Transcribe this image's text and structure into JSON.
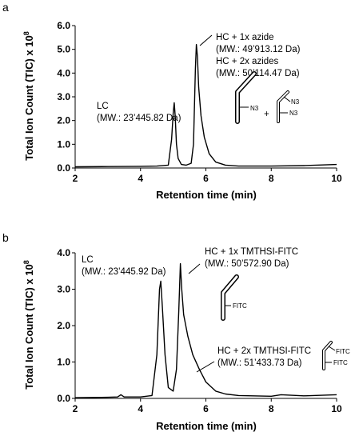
{
  "chart_data": [
    {
      "panel_label": "a",
      "type": "line",
      "xlabel": "Retention time (min)",
      "ylabel": "Total Ion Count (TIC) x 10",
      "ylabel_exponent": "8",
      "xlim": [
        2,
        10
      ],
      "ylim": [
        0,
        6
      ],
      "xticks": [
        "2",
        "4",
        "6",
        "8",
        "10"
      ],
      "yticks": [
        "0.0",
        "1.0",
        "2.0",
        "3.0",
        "4.0",
        "5.0",
        "6.0"
      ],
      "grid": false,
      "series": [
        {
          "x": [
            2.0,
            3.0,
            4.0,
            4.5,
            4.85,
            4.95,
            5.0,
            5.03,
            5.06,
            5.1,
            5.15,
            5.25,
            5.4,
            5.55,
            5.62,
            5.68,
            5.71,
            5.74,
            5.78,
            5.85,
            5.95,
            6.1,
            6.3,
            6.6,
            7.0,
            8.0,
            9.0,
            10.0
          ],
          "y": [
            0.05,
            0.06,
            0.07,
            0.08,
            0.12,
            1.2,
            2.3,
            2.75,
            2.2,
            1.0,
            0.4,
            0.15,
            0.12,
            0.2,
            1.0,
            4.2,
            5.2,
            4.7,
            3.4,
            2.2,
            1.3,
            0.6,
            0.25,
            0.12,
            0.08,
            0.08,
            0.1,
            0.15
          ]
        }
      ],
      "annotations": [
        {
          "lines": [
            "LC",
            "(MW.: 23’445.82 Da)"
          ]
        },
        {
          "lines": [
            "HC + 1x azide",
            "(MW.: 49’913.12 Da)"
          ]
        },
        {
          "lines": [
            "HC + 2x azides",
            "(MW.: 50’114.47 Da)"
          ]
        }
      ],
      "structure_labels": {
        "single": "N3",
        "double_a": "N3",
        "double_b": "N3",
        "plus": "+"
      }
    },
    {
      "panel_label": "b",
      "type": "line",
      "xlabel": "Retention time (min)",
      "ylabel": "Total Ion Count (TIC) x 10",
      "ylabel_exponent": "8",
      "xlim": [
        2,
        10
      ],
      "ylim": [
        0,
        4
      ],
      "xticks": [
        "2",
        "4",
        "6",
        "8",
        "10"
      ],
      "yticks": [
        "0.0",
        "1.0",
        "2.0",
        "3.0",
        "4.0"
      ],
      "grid": false,
      "series": [
        {
          "x": [
            2.0,
            3.0,
            3.3,
            3.4,
            3.5,
            4.0,
            4.35,
            4.5,
            4.58,
            4.62,
            4.67,
            4.75,
            4.85,
            5.0,
            5.1,
            5.17,
            5.22,
            5.26,
            5.32,
            5.45,
            5.6,
            5.8,
            6.0,
            6.3,
            6.6,
            7.0,
            8.0,
            8.3,
            9.0,
            10.0
          ],
          "y": [
            0.02,
            0.03,
            0.04,
            0.1,
            0.04,
            0.04,
            0.08,
            1.2,
            3.0,
            3.22,
            2.5,
            1.2,
            0.3,
            0.2,
            0.8,
            2.4,
            3.7,
            3.0,
            2.3,
            1.7,
            1.2,
            0.8,
            0.45,
            0.2,
            0.12,
            0.08,
            0.06,
            0.1,
            0.07,
            0.1
          ]
        }
      ],
      "annotations": [
        {
          "lines": [
            "LC",
            "(MW.: 23’445.92 Da)"
          ]
        },
        {
          "lines": [
            "HC + 1x TMTHSI-FITC",
            "(MW.: 50’572.90 Da)"
          ]
        },
        {
          "lines": [
            "HC + 2x TMTHSI-FITC",
            "(MW.: 51’433.73 Da)"
          ]
        }
      ],
      "structure_labels": {
        "single": "FITC",
        "double_a": "FITC",
        "double_b": "FITC"
      }
    }
  ]
}
